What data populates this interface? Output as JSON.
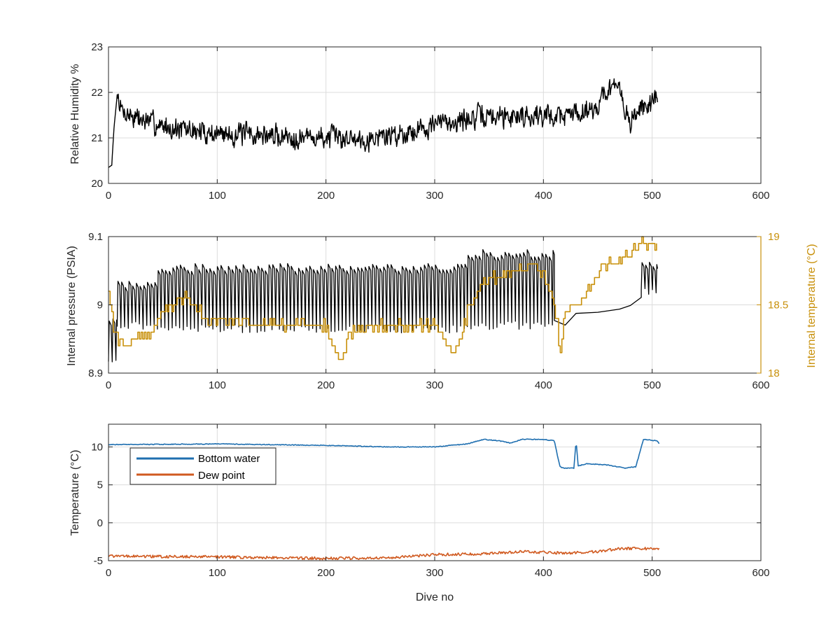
{
  "colors": {
    "humidity": "#000000",
    "pressure": "#000000",
    "internal_temperature": "#c8900a",
    "bottom_water": "#1f6fb0",
    "dew_point": "#d05a20",
    "grid": "#dcdcdc",
    "axis": "#262626"
  },
  "chart_data": [
    {
      "type": "line",
      "ylabel": "Relative Humidity %",
      "xlim": [
        0,
        600
      ],
      "ylim": [
        20,
        23
      ],
      "xticks": [
        "0",
        "100",
        "200",
        "300",
        "400",
        "500",
        "600"
      ],
      "yticks": [
        "20",
        "21",
        "22",
        "23"
      ],
      "grid": true,
      "series": [
        {
          "x_range": [
            0,
            505
          ],
          "noise_amplitude": 0.3,
          "points": [
            [
              0,
              20.35
            ],
            [
              3,
              20.4
            ],
            [
              5,
              21.2
            ],
            [
              8,
              21.95
            ],
            [
              12,
              21.6
            ],
            [
              30,
              21.4
            ],
            [
              60,
              21.2
            ],
            [
              100,
              21.1
            ],
            [
              150,
              21.05
            ],
            [
              200,
              21.0
            ],
            [
              240,
              21.0
            ],
            [
              270,
              21.1
            ],
            [
              300,
              21.3
            ],
            [
              340,
              21.45
            ],
            [
              380,
              21.5
            ],
            [
              420,
              21.5
            ],
            [
              450,
              21.7
            ],
            [
              460,
              22.15
            ],
            [
              470,
              22.0
            ],
            [
              480,
              21.3
            ],
            [
              490,
              21.7
            ],
            [
              505,
              21.8
            ]
          ]
        }
      ]
    },
    {
      "type": "line",
      "ylabel": "Internal pressure (PSIA)",
      "ylabel_right": "Internal temperature (°C)",
      "xlim": [
        0,
        600
      ],
      "ylim": [
        8.9,
        9.1
      ],
      "ylim_right": [
        18,
        19
      ],
      "xticks": [
        "0",
        "100",
        "200",
        "300",
        "400",
        "500",
        "600"
      ],
      "yticks": [
        "8.9",
        "9",
        "9.1"
      ],
      "yticks_right": [
        "18",
        "18.5",
        "19"
      ],
      "grid": true,
      "series": [
        {
          "axis": "left",
          "oscillation": "sawtooth",
          "segments": [
            {
              "x": [
                0,
                8
              ],
              "low": 8.92,
              "high": 8.98
            },
            {
              "x": [
                8,
                45
              ],
              "low": 8.97,
              "high": 9.03
            },
            {
              "x": [
                45,
                330
              ],
              "low": 8.965,
              "high": 9.055
            },
            {
              "x": [
                330,
                410
              ],
              "low": 8.97,
              "high": 9.075
            },
            {
              "x": [
                490,
                505
              ],
              "low": 9.02,
              "high": 9.06
            }
          ],
          "smooth_points": [
            [
              410,
              8.975
            ],
            [
              420,
              8.97
            ],
            [
              430,
              8.985
            ],
            [
              450,
              8.99
            ],
            [
              470,
              8.995
            ],
            [
              480,
              9.0
            ],
            [
              490,
              9.01
            ]
          ]
        },
        {
          "axis": "right",
          "points": [
            [
              0,
              18.6
            ],
            [
              5,
              18.3
            ],
            [
              15,
              18.2
            ],
            [
              40,
              18.3
            ],
            [
              50,
              18.45
            ],
            [
              70,
              18.55
            ],
            [
              90,
              18.4
            ],
            [
              150,
              18.35
            ],
            [
              200,
              18.35
            ],
            [
              215,
              18.05
            ],
            [
              220,
              18.3
            ],
            [
              260,
              18.35
            ],
            [
              300,
              18.35
            ],
            [
              315,
              18.15
            ],
            [
              325,
              18.3
            ],
            [
              330,
              18.45
            ],
            [
              340,
              18.65
            ],
            [
              370,
              18.75
            ],
            [
              390,
              18.8
            ],
            [
              405,
              18.65
            ],
            [
              412,
              18.4
            ],
            [
              415,
              18.15
            ],
            [
              420,
              18.45
            ],
            [
              440,
              18.6
            ],
            [
              455,
              18.8
            ],
            [
              475,
              18.85
            ],
            [
              490,
              18.95
            ],
            [
              505,
              18.95
            ]
          ]
        }
      ]
    },
    {
      "type": "line",
      "xlabel": "Dive no",
      "ylabel": "Temperature (°C)",
      "xlim": [
        0,
        600
      ],
      "ylim": [
        -5,
        13
      ],
      "xticks": [
        "0",
        "100",
        "200",
        "300",
        "400",
        "500",
        "600"
      ],
      "yticks": [
        "-5",
        "0",
        "5",
        "10"
      ],
      "grid": true,
      "legend": "top-left",
      "series": [
        {
          "name": "Bottom water",
          "points": [
            [
              0,
              10.3
            ],
            [
              100,
              10.4
            ],
            [
              200,
              10.2
            ],
            [
              260,
              10.0
            ],
            [
              300,
              10.0
            ],
            [
              330,
              10.4
            ],
            [
              345,
              11.0
            ],
            [
              360,
              10.8
            ],
            [
              370,
              10.5
            ],
            [
              380,
              11.0
            ],
            [
              400,
              11.0
            ],
            [
              410,
              10.8
            ],
            [
              415,
              7.5
            ],
            [
              418,
              7.2
            ],
            [
              428,
              7.2
            ],
            [
              430,
              10.8
            ],
            [
              432,
              7.5
            ],
            [
              440,
              7.8
            ],
            [
              460,
              7.6
            ],
            [
              475,
              7.2
            ],
            [
              485,
              7.4
            ],
            [
              492,
              11.0
            ],
            [
              505,
              10.8
            ],
            [
              507,
              10.3
            ]
          ]
        },
        {
          "name": "Dew point",
          "points": [
            [
              0,
              -4.4
            ],
            [
              100,
              -4.5
            ],
            [
              200,
              -4.7
            ],
            [
              260,
              -4.6
            ],
            [
              300,
              -4.2
            ],
            [
              340,
              -4.1
            ],
            [
              380,
              -3.8
            ],
            [
              420,
              -4.0
            ],
            [
              450,
              -3.8
            ],
            [
              470,
              -3.4
            ],
            [
              505,
              -3.4
            ]
          ]
        }
      ]
    }
  ]
}
